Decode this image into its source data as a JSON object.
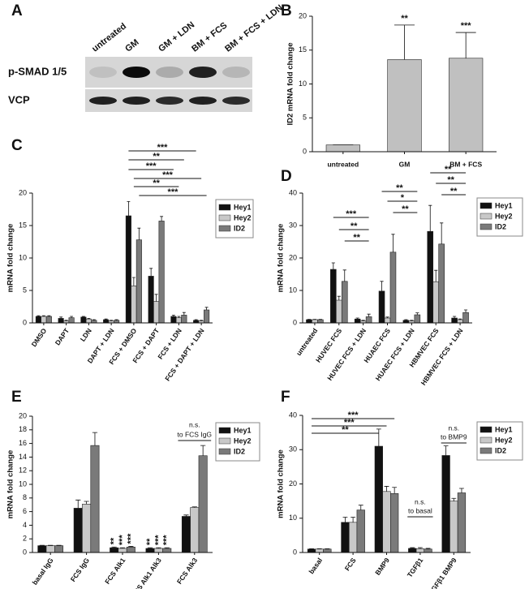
{
  "blot": {
    "panel": "A",
    "lanes": [
      "untreated",
      "GM",
      "GM + LDN",
      "BM + FCS",
      "BM + FCS + LDN"
    ],
    "rows": [
      "p-SMAD 1/5",
      "VCP"
    ]
  },
  "chart_data": [
    {
      "type": "bar",
      "panel": "B",
      "y_label": "ID2 mRNA fold change",
      "categories": [
        "untreated",
        "GM",
        "BM + FCS"
      ],
      "values": [
        1,
        13.6,
        13.8
      ],
      "errors": [
        0,
        5.1,
        3.8
      ],
      "color": "#c0c0c0",
      "ylim": [
        0,
        20
      ],
      "yticks": [
        0,
        5,
        10,
        15,
        20
      ],
      "annotations": [
        "**",
        "***"
      ]
    },
    {
      "type": "bar",
      "panel": "C",
      "y_label": "mRNA fold change",
      "categories": [
        "DMSO",
        "DAPT",
        "LDN",
        "DAPT + LDN",
        "FCS + DMSO",
        "FCS + DAPT",
        "FCS + LDN",
        "FCS + DAPT + LDN"
      ],
      "series": [
        {
          "name": "Hey1",
          "color": "#111111",
          "values": [
            1,
            0.7,
            0.9,
            0.5,
            16.5,
            7.2,
            1.0,
            0.4
          ],
          "errors": [
            0.1,
            0.2,
            0.1,
            0.1,
            2.2,
            1.2,
            0.2,
            0.1
          ]
        },
        {
          "name": "Hey2",
          "color": "#c8c8c8",
          "values": [
            1,
            0.3,
            0.6,
            0.3,
            5.7,
            3.3,
            0.8,
            0.3
          ],
          "errors": [
            0.1,
            0.1,
            0.1,
            0.1,
            1.3,
            1.1,
            0.2,
            0.1
          ]
        },
        {
          "name": "ID2",
          "color": "#7a7a7a",
          "values": [
            1,
            0.8,
            0.4,
            0.4,
            12.8,
            15.7,
            1.2,
            2.0
          ],
          "errors": [
            0.1,
            0.2,
            0.1,
            0.1,
            1.8,
            0.7,
            0.4,
            0.4
          ]
        }
      ],
      "ylim": [
        0,
        20
      ],
      "yticks": [
        0,
        5,
        10,
        15,
        20
      ],
      "annotations": [
        "***",
        "**",
        "***",
        "***",
        "**",
        "***"
      ]
    },
    {
      "type": "bar",
      "panel": "D",
      "y_label": "mRNA fold change",
      "categories": [
        "untreated",
        "HUVEC FCS",
        "HUVEC FCS + LDN",
        "HUAEC FCS",
        "HUAEC FCS + LDN",
        "HBMVEC FCS",
        "HBMVEC FCS + LDN"
      ],
      "series": [
        {
          "name": "Hey1",
          "color": "#111111",
          "values": [
            1,
            16.5,
            1.2,
            9.8,
            0.8,
            28.2,
            1.5
          ],
          "errors": [
            0.1,
            2,
            0.3,
            3,
            0.2,
            8,
            0.5
          ]
        },
        {
          "name": "Hey2",
          "color": "#c8c8c8",
          "values": [
            1,
            7,
            0.6,
            1.5,
            0.6,
            12.7,
            1
          ],
          "errors": [
            0.1,
            1.2,
            0.2,
            0.3,
            0.2,
            3.5,
            0.2
          ]
        },
        {
          "name": "ID2",
          "color": "#7a7a7a",
          "values": [
            1,
            12.8,
            1.9,
            21.8,
            2.5,
            24.3,
            3.2
          ],
          "errors": [
            0.1,
            3.5,
            0.8,
            5.5,
            0.6,
            6.5,
            0.8
          ]
        }
      ],
      "ylim": [
        0,
        40
      ],
      "yticks": [
        0,
        10,
        20,
        30,
        40
      ],
      "annotations": [
        "***",
        "**",
        "**",
        "**",
        "*",
        "**",
        "**",
        "**",
        "**"
      ]
    },
    {
      "type": "bar",
      "panel": "E",
      "y_label": "mRNA fold change",
      "categories": [
        "basal IgG",
        "FCS IgG",
        "FCS Alk1",
        "FCS Alk1 Alk3",
        "FCS Alk3"
      ],
      "series": [
        {
          "name": "Hey1",
          "color": "#111111",
          "values": [
            1,
            6.5,
            0.7,
            0.6,
            5.3
          ],
          "errors": [
            0.05,
            1.2,
            0.1,
            0.1,
            0.2
          ]
        },
        {
          "name": "Hey2",
          "color": "#c8c8c8",
          "values": [
            1,
            7.1,
            0.6,
            0.6,
            6.6
          ],
          "errors": [
            0.05,
            0.4,
            0.1,
            0.1,
            0.1
          ]
        },
        {
          "name": "ID2",
          "color": "#7a7a7a",
          "values": [
            1,
            15.7,
            0.8,
            0.6,
            14.2
          ],
          "errors": [
            0.05,
            1.9,
            0.1,
            0.1,
            1.5
          ]
        }
      ],
      "ylim": [
        0,
        20
      ],
      "yticks": [
        0,
        2,
        4,
        6,
        8,
        10,
        12,
        14,
        16,
        18,
        20
      ],
      "annotations": [
        "**",
        "***",
        "***",
        "**",
        "***",
        "***",
        "n.s.",
        "to FCS IgG"
      ]
    },
    {
      "type": "bar",
      "panel": "F",
      "y_label": "mRNA fold change",
      "categories": [
        "basal",
        "FCS",
        "BMP9",
        "TGFβ1",
        "TGFβ1 BMP9"
      ],
      "series": [
        {
          "name": "Hey1",
          "color": "#111111",
          "values": [
            1,
            8.8,
            31,
            1.2,
            28.3
          ],
          "errors": [
            0.1,
            1.5,
            5,
            0.2,
            2.8
          ]
        },
        {
          "name": "Hey2",
          "color": "#c8c8c8",
          "values": [
            1,
            8.8,
            17.8,
            1.1,
            15
          ],
          "errors": [
            0.1,
            1.5,
            1.5,
            0.3,
            0.8
          ]
        },
        {
          "name": "ID2",
          "color": "#7a7a7a",
          "values": [
            1,
            12.4,
            17.2,
            1,
            17.4
          ],
          "errors": [
            0.1,
            1.4,
            1.8,
            0.2,
            1.3
          ]
        }
      ],
      "ylim": [
        0,
        40
      ],
      "yticks": [
        0,
        10,
        20,
        30,
        40
      ],
      "annotations": [
        "***",
        "***",
        "**",
        "n.s.",
        "to basal",
        "n.s.",
        "to BMP9"
      ]
    }
  ]
}
